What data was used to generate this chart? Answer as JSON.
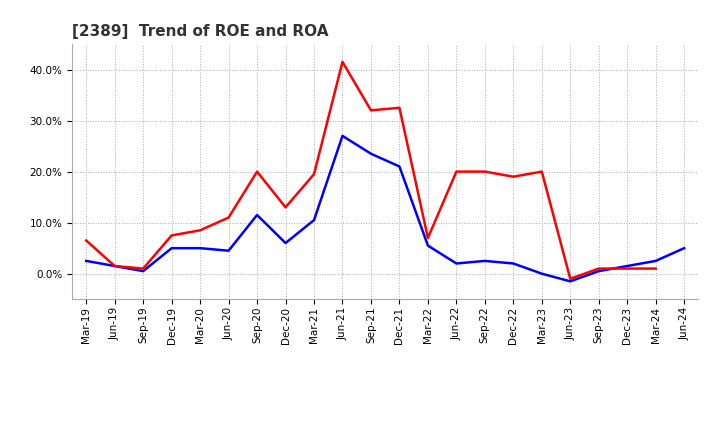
{
  "title": "[2389]  Trend of ROE and ROA",
  "x_labels": [
    "Mar-19",
    "Jun-19",
    "Sep-19",
    "Dec-19",
    "Mar-20",
    "Jun-20",
    "Sep-20",
    "Dec-20",
    "Mar-21",
    "Jun-21",
    "Sep-21",
    "Dec-21",
    "Mar-22",
    "Jun-22",
    "Sep-22",
    "Dec-22",
    "Mar-23",
    "Jun-23",
    "Sep-23",
    "Dec-23",
    "Mar-24",
    "Jun-24"
  ],
  "roe": [
    6.5,
    1.5,
    1.0,
    7.5,
    8.5,
    11.0,
    20.0,
    13.0,
    19.5,
    41.5,
    32.0,
    32.5,
    7.0,
    20.0,
    20.0,
    19.0,
    20.0,
    -1.0,
    1.0,
    1.0,
    1.0,
    null
  ],
  "roa": [
    2.5,
    1.5,
    0.5,
    5.0,
    5.0,
    4.5,
    11.5,
    6.0,
    10.5,
    27.0,
    23.5,
    21.0,
    5.5,
    2.0,
    2.5,
    2.0,
    0.0,
    -1.5,
    0.5,
    1.5,
    2.5,
    5.0
  ],
  "roe_color": "#FF0000",
  "roa_color": "#0000FF",
  "bg_color": "#FFFFFF",
  "plot_bg_color": "#FFFFFF",
  "grid_color": "#AAAAAA",
  "ylim": [
    -5,
    45
  ],
  "yticks": [
    0.0,
    10.0,
    20.0,
    30.0,
    40.0
  ],
  "line_width": 1.8,
  "title_fontsize": 11,
  "legend_fontsize": 9,
  "tick_fontsize": 7.5
}
